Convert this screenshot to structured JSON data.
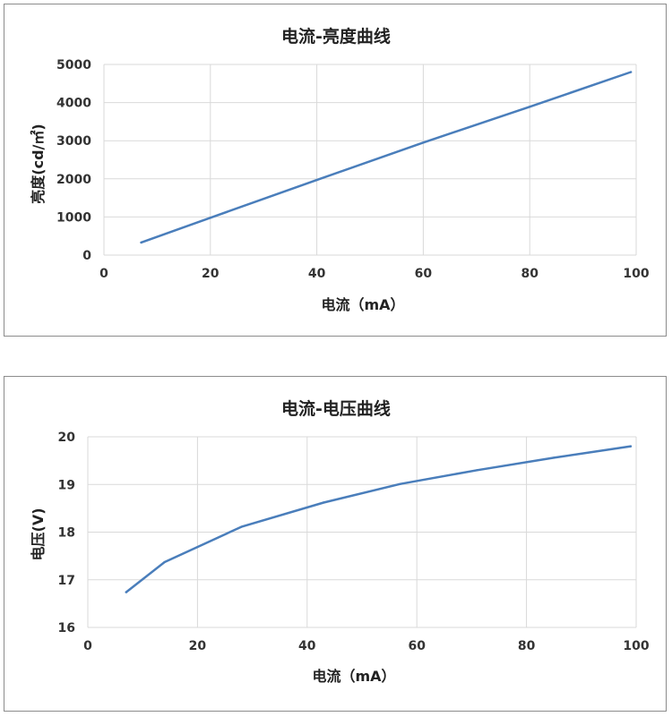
{
  "colors": {
    "series": "#4a7ebb",
    "grid": "#d9d9d9",
    "border": "#8c8c8c"
  },
  "chart_data": [
    {
      "type": "line",
      "title": "电流-亮度曲线",
      "xlabel": "电流（mA）",
      "ylabel": "亮度(cd/㎡)",
      "xlim": [
        0,
        100
      ],
      "ylim": [
        0,
        5000
      ],
      "xticks": [
        "0",
        "20",
        "40",
        "60",
        "80",
        "100"
      ],
      "yticks": [
        "0",
        "1000",
        "2000",
        "3000",
        "4000",
        "5000"
      ],
      "grid": true,
      "legend": "none",
      "series": [
        {
          "x": [
            7,
            20,
            40,
            60,
            80,
            99
          ],
          "y": [
            330,
            980,
            1970,
            2950,
            3890,
            4800
          ]
        }
      ]
    },
    {
      "type": "line",
      "title": "电流-电压曲线",
      "xlabel": "电流（mA）",
      "ylabel": "电压(V)",
      "xlim": [
        0,
        100
      ],
      "ylim": [
        16,
        20
      ],
      "xticks": [
        "0",
        "20",
        "40",
        "60",
        "80",
        "100"
      ],
      "yticks": [
        "16",
        "17",
        "18",
        "19",
        "20"
      ],
      "grid": true,
      "legend": "none",
      "series": [
        {
          "x": [
            7,
            14,
            28,
            43,
            57,
            71,
            85,
            99
          ],
          "y": [
            16.74,
            17.37,
            18.11,
            18.62,
            19.01,
            19.3,
            19.56,
            19.8
          ]
        }
      ]
    }
  ]
}
